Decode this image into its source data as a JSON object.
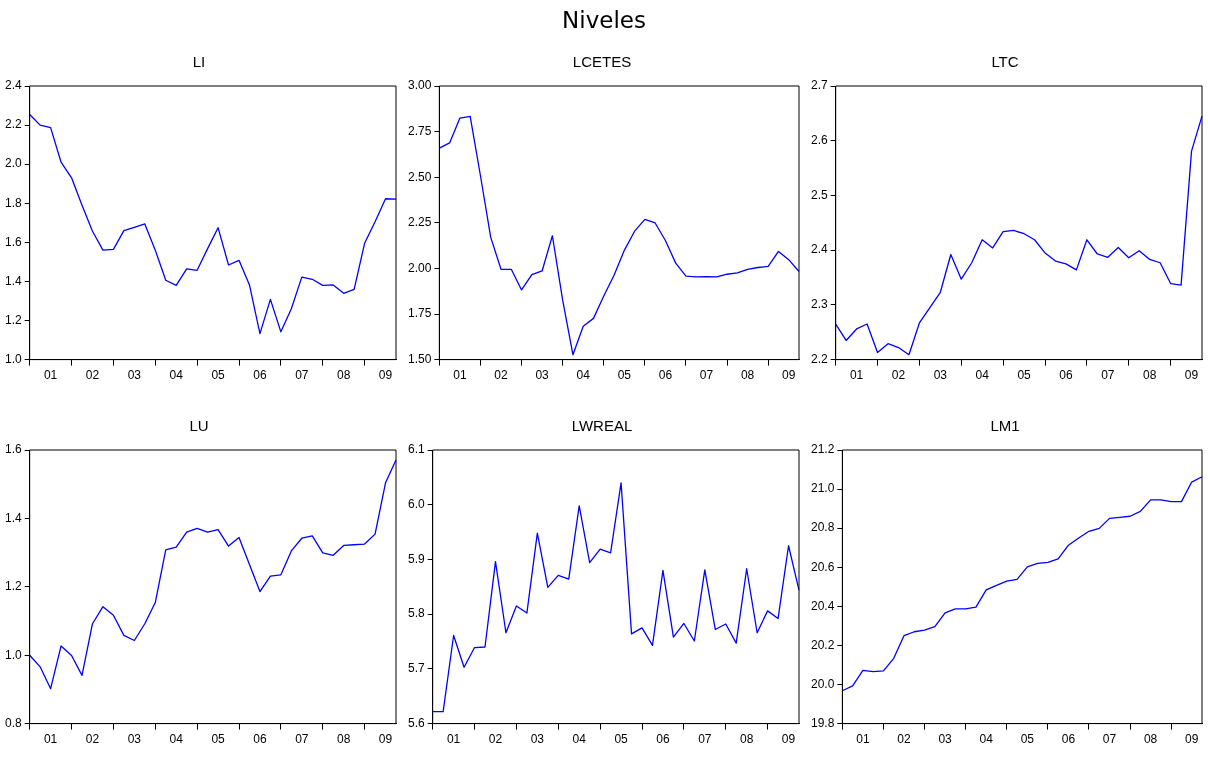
{
  "chart_data": [
    {
      "type": "other",
      "title": "Niveles"
    },
    {
      "type": "line",
      "title": "LI",
      "color": "#0000ff",
      "marker": "none",
      "grid": false,
      "categories": [
        null,
        null,
        "01",
        null,
        null,
        null,
        "02",
        null,
        null,
        null,
        "03",
        null,
        null,
        null,
        "04",
        null,
        null,
        null,
        "05",
        null,
        null,
        null,
        "06",
        null,
        null,
        null,
        "07",
        null,
        null,
        null,
        "08",
        null,
        null,
        null,
        "09",
        null
      ],
      "values": [
        2.254,
        2.2,
        2.187,
        2.01,
        1.93,
        1.79,
        1.657,
        1.56,
        1.564,
        1.66,
        1.677,
        1.694,
        1.56,
        1.406,
        1.38,
        1.464,
        1.457,
        1.568,
        1.675,
        1.484,
        1.508,
        1.382,
        1.133,
        1.308,
        1.142,
        1.26,
        1.422,
        1.411,
        1.38,
        1.382,
        1.339,
        1.359,
        1.595,
        1.705,
        1.823,
        1.821
      ],
      "ylim": [
        1,
        2.4
      ],
      "yticks": [
        {
          "value": 1,
          "label": "1.0"
        },
        1.2,
        1.4,
        1.6,
        1.8,
        {
          "value": 2,
          "label": "2.0"
        },
        2.2,
        2.4
      ]
    },
    {
      "type": "line",
      "title": "LCETES",
      "color": "#0000ff",
      "marker": "none",
      "grid": false,
      "categories": [
        null,
        null,
        "01",
        null,
        null,
        null,
        "02",
        null,
        null,
        null,
        "03",
        null,
        null,
        null,
        "04",
        null,
        null,
        null,
        "05",
        null,
        null,
        null,
        "06",
        null,
        null,
        null,
        "07",
        null,
        null,
        null,
        "08",
        null,
        null,
        null,
        "09",
        null
      ],
      "values": [
        2.659,
        2.688,
        2.824,
        2.834,
        2.508,
        2.17,
        1.995,
        1.995,
        1.882,
        1.966,
        1.986,
        2.179,
        1.826,
        1.527,
        1.683,
        1.726,
        1.849,
        1.962,
        2.099,
        2.204,
        2.269,
        2.249,
        2.153,
        2.029,
        1.958,
        1.953,
        1.955,
        1.953,
        1.968,
        1.975,
        1.995,
        2.005,
        2.011,
        2.093,
        2.048,
        1.983
      ],
      "ylim": [
        1.5,
        3
      ],
      "yticks": [
        {
          "value": 1.5,
          "label": "1.50"
        },
        1.75,
        {
          "value": 2,
          "label": "2.00"
        },
        2.25,
        {
          "value": 2.5,
          "label": "2.50"
        },
        2.75,
        {
          "value": 3,
          "label": "3.00"
        }
      ]
    },
    {
      "type": "line",
      "title": "LTC",
      "color": "#0000ff",
      "marker": "none",
      "grid": false,
      "categories": [
        null,
        null,
        "01",
        null,
        null,
        null,
        "02",
        null,
        null,
        null,
        "03",
        null,
        null,
        null,
        "04",
        null,
        null,
        null,
        "05",
        null,
        null,
        null,
        "06",
        null,
        null,
        null,
        "07",
        null,
        null,
        null,
        "08",
        null,
        null,
        null,
        "09",
        null
      ],
      "values": [
        2.265,
        2.235,
        2.256,
        2.265,
        2.213,
        2.229,
        2.222,
        2.209,
        2.267,
        2.295,
        2.323,
        2.392,
        2.347,
        2.377,
        2.419,
        2.404,
        2.434,
        2.436,
        2.43,
        2.419,
        2.395,
        2.38,
        2.375,
        2.364,
        2.419,
        2.393,
        2.387,
        2.405,
        2.386,
        2.399,
        2.383,
        2.377,
        2.339,
        2.336,
        2.581,
        2.645
      ],
      "ylim": [
        2.2,
        2.7
      ],
      "yticks": [
        2.2,
        2.3,
        2.4,
        2.5,
        2.6,
        2.7
      ]
    },
    {
      "type": "line",
      "title": "LU",
      "color": "#0000ff",
      "marker": "none",
      "grid": false,
      "categories": [
        null,
        null,
        "01",
        null,
        null,
        null,
        "02",
        null,
        null,
        null,
        "03",
        null,
        null,
        null,
        "04",
        null,
        null,
        null,
        "05",
        null,
        null,
        null,
        "06",
        null,
        null,
        null,
        "07",
        null,
        null,
        null,
        "08",
        null,
        null,
        null,
        "09",
        null
      ],
      "values": [
        1.0,
        0.966,
        0.902,
        1.027,
        0.999,
        0.941,
        1.092,
        1.142,
        1.117,
        1.058,
        1.043,
        1.092,
        1.154,
        1.308,
        1.316,
        1.36,
        1.371,
        1.36,
        1.367,
        1.319,
        1.344,
        1.265,
        1.186,
        1.231,
        1.235,
        1.305,
        1.342,
        1.349,
        1.299,
        1.292,
        1.321,
        1.323,
        1.325,
        1.354,
        1.504,
        1.571
      ],
      "ylim": [
        0.8,
        1.6
      ],
      "yticks": [
        0.8,
        {
          "value": 1,
          "label": "1.0"
        },
        1.2,
        1.4,
        1.6
      ]
    },
    {
      "type": "line",
      "title": "LWREAL",
      "color": "#0000ff",
      "marker": "none",
      "grid": false,
      "categories": [
        null,
        null,
        "01",
        null,
        null,
        null,
        "02",
        null,
        null,
        null,
        "03",
        null,
        null,
        null,
        "04",
        null,
        null,
        null,
        "05",
        null,
        null,
        null,
        "06",
        null,
        null,
        null,
        "07",
        null,
        null,
        null,
        "08",
        null,
        null,
        null,
        "09",
        null
      ],
      "values": [
        5.622,
        5.622,
        5.761,
        5.703,
        5.739,
        5.74,
        5.896,
        5.766,
        5.815,
        5.802,
        5.948,
        5.849,
        5.871,
        5.864,
        5.998,
        5.894,
        5.919,
        5.912,
        6.04,
        5.764,
        5.775,
        5.743,
        5.88,
        5.758,
        5.783,
        5.751,
        5.881,
        5.772,
        5.782,
        5.747,
        5.883,
        5.766,
        5.806,
        5.792,
        5.925,
        5.844
      ],
      "ylim": [
        5.6,
        6.1
      ],
      "yticks": [
        5.6,
        5.7,
        5.8,
        5.9,
        {
          "value": 6,
          "label": "6.0"
        },
        6.1
      ]
    },
    {
      "type": "line",
      "title": "LM1",
      "color": "#0000ff",
      "marker": "none",
      "grid": false,
      "categories": [
        null,
        null,
        "01",
        null,
        null,
        null,
        "02",
        null,
        null,
        null,
        "03",
        null,
        null,
        null,
        "04",
        null,
        null,
        null,
        "05",
        null,
        null,
        null,
        "06",
        null,
        null,
        null,
        "07",
        null,
        null,
        null,
        "08",
        null,
        null,
        null,
        "09",
        null
      ],
      "values": [
        19.968,
        19.993,
        20.072,
        20.066,
        20.07,
        20.134,
        20.25,
        20.27,
        20.278,
        20.296,
        20.367,
        20.387,
        20.387,
        20.396,
        20.484,
        20.507,
        20.529,
        20.538,
        20.602,
        20.62,
        20.625,
        20.643,
        20.713,
        20.75,
        20.784,
        20.799,
        20.85,
        20.855,
        20.861,
        20.886,
        20.945,
        20.945,
        20.936,
        20.936,
        21.036,
        21.063
      ],
      "ylim": [
        19.8,
        21.2
      ],
      "yticks": [
        19.8,
        {
          "value": 20,
          "label": "20.0"
        },
        20.2,
        20.4,
        20.6,
        20.8,
        {
          "value": 21,
          "label": "21.0"
        },
        21.2
      ]
    }
  ]
}
